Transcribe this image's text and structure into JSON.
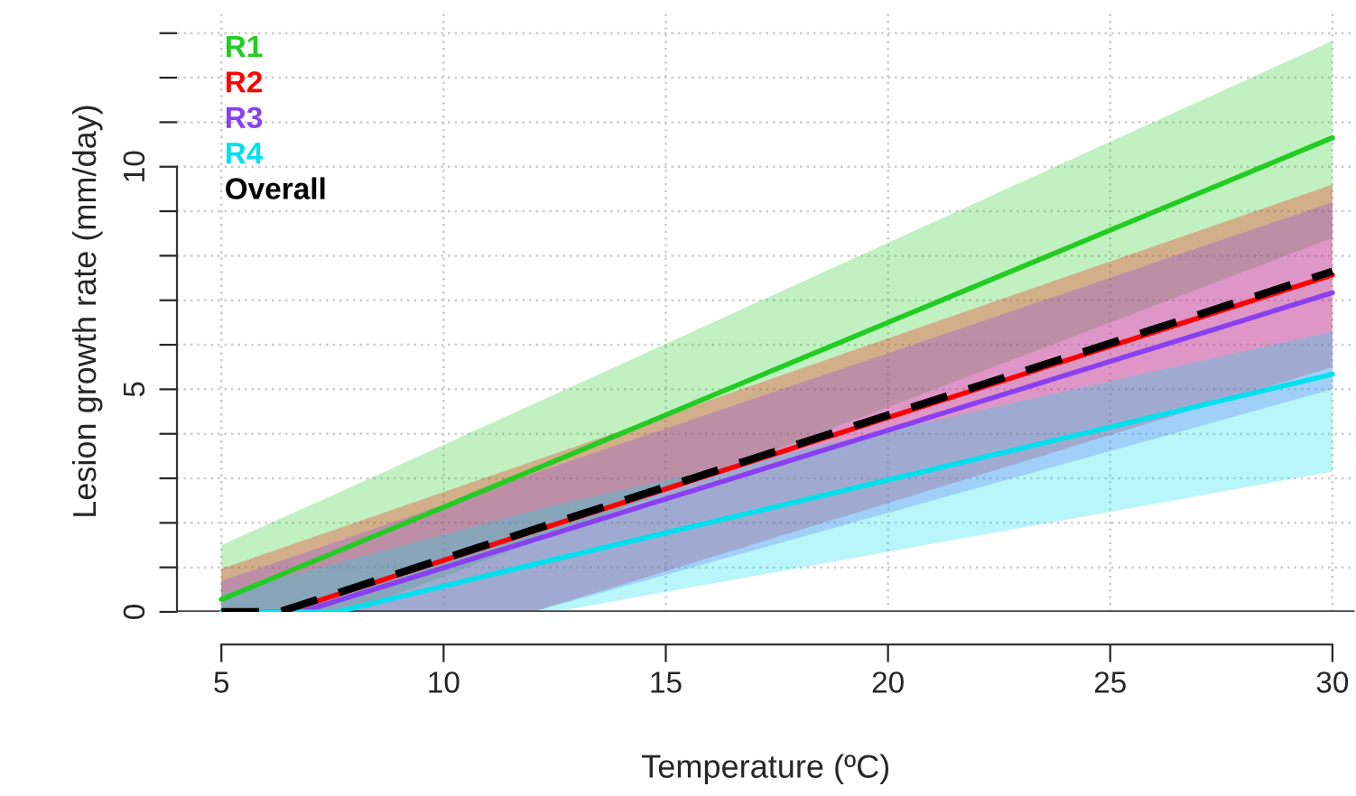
{
  "chart_data": {
    "type": "line",
    "xlabel": "Temperature (ºC)",
    "ylabel": "Lesion growth rate (mm/day)",
    "xlim": [
      4,
      30.5
    ],
    "ylim": [
      0,
      13.5
    ],
    "xticks": [
      5,
      10,
      15,
      20,
      25,
      30
    ],
    "yticks": [
      0,
      {
        "value": 1,
        "label": null
      },
      {
        "value": 2,
        "label": null
      },
      {
        "value": 3,
        "label": null
      },
      {
        "value": 4,
        "label": null
      },
      5,
      {
        "value": 6,
        "label": null
      },
      {
        "value": 7,
        "label": null
      },
      {
        "value": 8,
        "label": null
      },
      {
        "value": 9,
        "label": null
      },
      10,
      {
        "value": 11,
        "label": null
      },
      {
        "value": 12,
        "label": null
      },
      {
        "value": 13,
        "label": null
      }
    ],
    "grid": true,
    "legend": "top left",
    "ref_lines": [
      {
        "axis": "y",
        "value": 0,
        "color": "#444444"
      }
    ],
    "series": [
      {
        "name": "R1",
        "color": "#22cc22",
        "x": [
          5,
          7.9,
          30
        ],
        "values": [
          0.28,
          1.48,
          10.65
        ],
        "lower": [
          0,
          0,
          8.4
        ],
        "upper": [
          1.5,
          2.8,
          12.83
        ]
      },
      {
        "name": "R2",
        "color": "#ff0000",
        "x": [
          5,
          6.4,
          12,
          30
        ],
        "values": [
          0,
          0,
          1.8,
          7.57
        ],
        "lower": [
          0,
          0,
          0,
          5.5
        ],
        "upper": [
          0.97,
          1.45,
          3.38,
          9.6
        ]
      },
      {
        "name": "R3",
        "color": "#8a3ff0",
        "x": [
          5,
          6.8,
          12,
          30
        ],
        "values": [
          0,
          0,
          1.61,
          7.17
        ],
        "lower": [
          0,
          0,
          0,
          5.0
        ],
        "upper": [
          0.7,
          1.3,
          3.1,
          9.2
        ]
      },
      {
        "name": "R4",
        "color": "#00e0ee",
        "x": [
          5,
          7.6,
          12.5,
          30
        ],
        "values": [
          0,
          0,
          1.18,
          5.34
        ],
        "lower": [
          0,
          0,
          0,
          3.15
        ],
        "upper": [
          0.4,
          1.1,
          2.4,
          6.3
        ]
      },
      {
        "name": "Overall",
        "color": "#000000",
        "x": [
          5,
          6.3,
          30
        ],
        "values": [
          0,
          0,
          7.65
        ],
        "line_style": "dashed"
      }
    ]
  }
}
